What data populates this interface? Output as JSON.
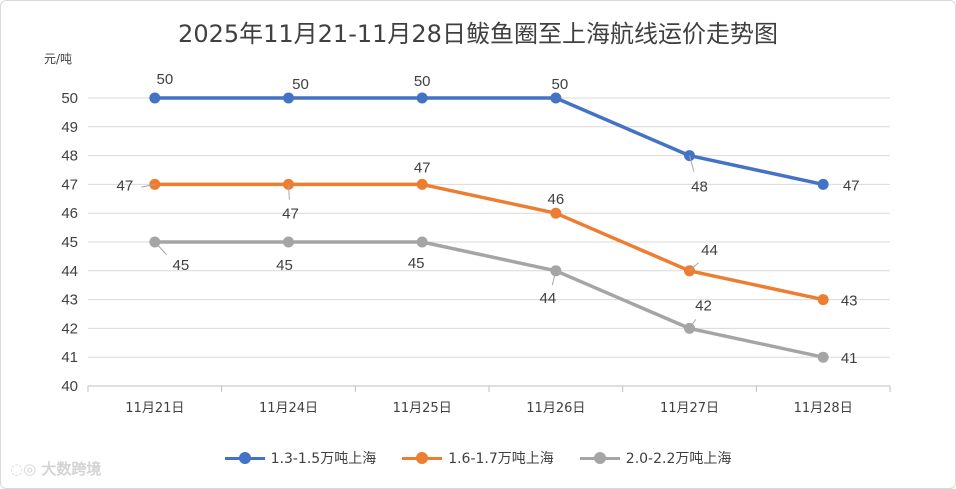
{
  "chart_data": {
    "type": "line",
    "title": "2025年11月21-11月28日鲅鱼圈至上海航线运价走势图",
    "ylabel": "元/吨",
    "xlabel": "",
    "categories": [
      "11月21日",
      "11月24日",
      "11月25日",
      "11月26日",
      "11月27日",
      "11月28日"
    ],
    "ylim": [
      40,
      50
    ],
    "yticks": [
      "40",
      "41",
      "42",
      "43",
      "44",
      "45",
      "46",
      "47",
      "48",
      "49",
      "50"
    ],
    "grid": true,
    "legend_position": "bottom",
    "series": [
      {
        "name": "1.3-1.5万吨上海",
        "values": [
          50,
          50,
          50,
          50,
          48,
          47
        ],
        "color": "#4472c4"
      },
      {
        "name": "1.6-1.7万吨上海",
        "values": [
          47,
          47,
          47,
          46,
          44,
          43
        ],
        "color": "#ed7d31"
      },
      {
        "name": "2.0-2.2万吨上海",
        "values": [
          45,
          45,
          45,
          44,
          42,
          41
        ],
        "color": "#a5a5a5"
      }
    ]
  },
  "watermark": "大数跨境"
}
